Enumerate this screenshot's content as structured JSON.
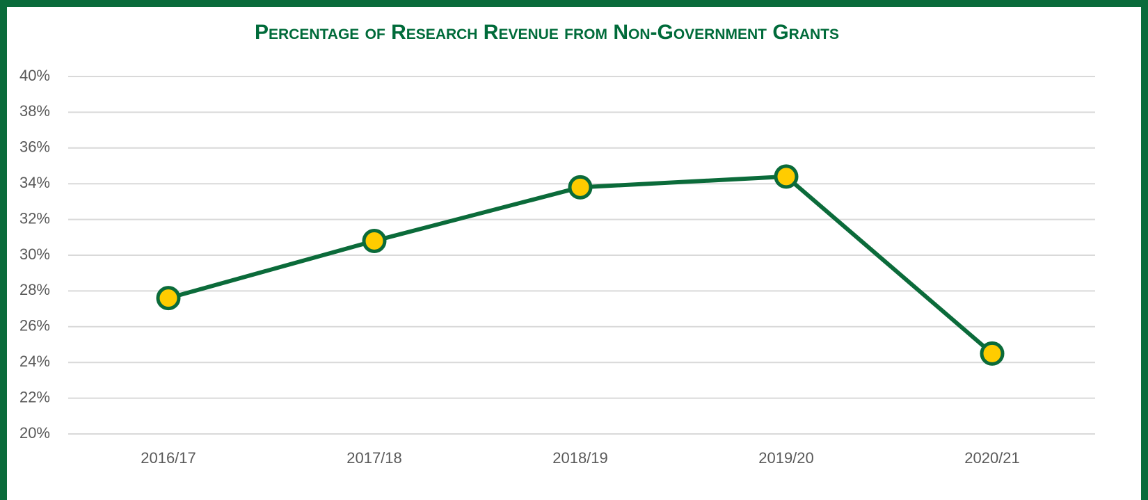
{
  "chart_data": {
    "type": "line",
    "title": "Percentage of Research Revenue from Non-Government Grants",
    "categories": [
      "2016/17",
      "2017/18",
      "2018/19",
      "2019/20",
      "2020/21"
    ],
    "series": [
      {
        "name": "Percentage of Research Revenue from Non-Government Grants",
        "color": "#0b6b3a",
        "values": [
          27.6,
          30.8,
          33.8,
          34.4,
          24.5
        ]
      }
    ],
    "marker_color": "#ffcc00",
    "ylim": [
      20,
      40
    ],
    "yticks": [
      {
        "value": 20,
        "label": "20%"
      },
      {
        "value": 22,
        "label": "22%"
      },
      {
        "value": 24,
        "label": "24%"
      },
      {
        "value": 26,
        "label": "26%"
      },
      {
        "value": 28,
        "label": "28%"
      },
      {
        "value": 30,
        "label": "30%"
      },
      {
        "value": 32,
        "label": "32%"
      },
      {
        "value": 34,
        "label": "34%"
      },
      {
        "value": 36,
        "label": "36%"
      },
      {
        "value": 38,
        "label": "38%"
      },
      {
        "value": 40,
        "label": "40%"
      }
    ],
    "grid": true
  }
}
